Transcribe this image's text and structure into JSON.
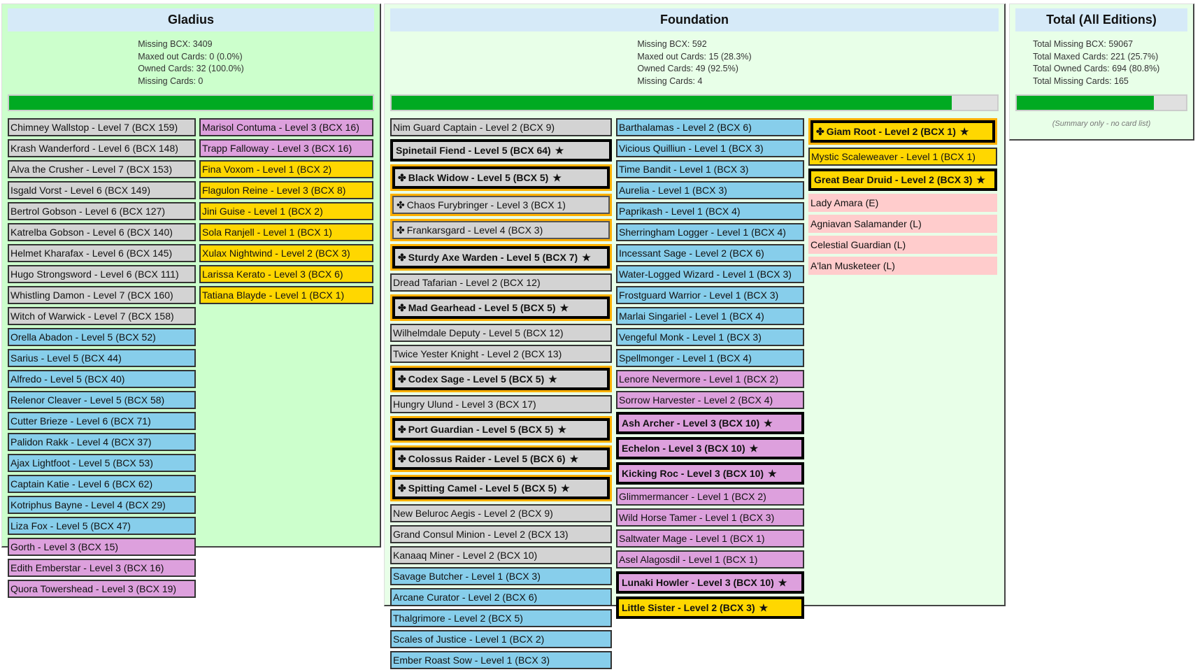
{
  "colors": {
    "gray": "#d3d3d3",
    "blue": "#87ceeb",
    "plum": "#dda0dd",
    "gold": "#ffd700",
    "missing": "#ffcccc",
    "progress": "#00aa22"
  },
  "icons": {
    "gold_foil": "gold-foil-icon",
    "maxed": "star-icon"
  },
  "gladius": {
    "title": "Gladius",
    "stats": [
      "Missing BCX: 3409",
      "Maxed out Cards: 0 (0.0%)",
      "Owned Cards: 32 (100.0%)",
      "Missing Cards: 0"
    ],
    "progress_percent": 100,
    "columns": [
      [
        {
          "t": "Chimney Wallstop - Level 7 (BCX 159)",
          "c": "gray"
        },
        {
          "t": "Krash Wanderford - Level 6 (BCX 148)",
          "c": "gray"
        },
        {
          "t": "Alva the Crusher - Level 7 (BCX 153)",
          "c": "gray"
        },
        {
          "t": "Isgald Vorst - Level 6 (BCX 149)",
          "c": "gray"
        },
        {
          "t": "Bertrol Gobson - Level 6 (BCX 127)",
          "c": "gray"
        },
        {
          "t": "Katrelba Gobson - Level 6 (BCX 140)",
          "c": "gray"
        },
        {
          "t": "Helmet Kharafax - Level 6 (BCX 145)",
          "c": "gray"
        },
        {
          "t": "Hugo Strongsword - Level 6 (BCX 111)",
          "c": "gray"
        },
        {
          "t": "Whistling Damon - Level 7 (BCX 160)",
          "c": "gray"
        },
        {
          "t": "Witch of Warwick - Level 7 (BCX 158)",
          "c": "gray"
        },
        {
          "t": "Orella Abadon - Level 5 (BCX 52)",
          "c": "blue"
        },
        {
          "t": "Sarius - Level 5 (BCX 44)",
          "c": "blue"
        },
        {
          "t": "Alfredo - Level 5 (BCX 40)",
          "c": "blue"
        },
        {
          "t": "Relenor Cleaver - Level 5 (BCX 58)",
          "c": "blue"
        },
        {
          "t": "Cutter Brieze - Level 6 (BCX 71)",
          "c": "blue"
        },
        {
          "t": "Palidon Rakk - Level 4 (BCX 37)",
          "c": "blue"
        },
        {
          "t": "Ajax Lightfoot - Level 5 (BCX 53)",
          "c": "blue"
        },
        {
          "t": "Captain Katie - Level 6 (BCX 62)",
          "c": "blue"
        },
        {
          "t": "Kotriphus Bayne - Level 4 (BCX 29)",
          "c": "blue"
        },
        {
          "t": "Liza Fox - Level 5 (BCX 47)",
          "c": "blue"
        },
        {
          "t": "Gorth - Level 3 (BCX 15)",
          "c": "plum"
        },
        {
          "t": "Edith Emberstar - Level 3 (BCX 16)",
          "c": "plum"
        },
        {
          "t": "Quora Towershead - Level 3 (BCX 19)",
          "c": "plum"
        }
      ],
      [
        {
          "t": "Marisol Contuma - Level 3 (BCX 16)",
          "c": "plum"
        },
        {
          "t": "Trapp Falloway - Level 3 (BCX 16)",
          "c": "plum"
        },
        {
          "t": "Fina Voxom - Level 1 (BCX 2)",
          "c": "gold"
        },
        {
          "t": "Flagulon Reine - Level 3 (BCX 8)",
          "c": "gold"
        },
        {
          "t": "Jini Guise - Level 1 (BCX 2)",
          "c": "gold"
        },
        {
          "t": "Sola Ranjell - Level 1 (BCX 1)",
          "c": "gold"
        },
        {
          "t": "Xulax Nightwind - Level 2 (BCX 3)",
          "c": "gold"
        },
        {
          "t": "Larissa Kerato - Level 3 (BCX 6)",
          "c": "gold"
        },
        {
          "t": "Tatiana Blayde - Level 1 (BCX 1)",
          "c": "gold"
        }
      ]
    ]
  },
  "foundation": {
    "title": "Foundation",
    "stats": [
      "Missing BCX: 592",
      "Maxed out Cards: 15 (28.3%)",
      "Owned Cards: 49 (92.5%)",
      "Missing Cards: 4"
    ],
    "progress_percent": 92.5,
    "columns": [
      [
        {
          "t": "Nim Guard Captain - Level 2 (BCX 9)",
          "c": "gray"
        },
        {
          "t": "Spinetail Fiend - Level 5 (BCX 64)",
          "c": "gray",
          "m": true
        },
        {
          "t": "Black Widow - Level 5 (BCX 5)",
          "c": "gray",
          "m": true,
          "g": true
        },
        {
          "t": "Chaos Furybringer - Level 3 (BCX 1)",
          "c": "gray",
          "g": true
        },
        {
          "t": "Frankarsgard - Level 4 (BCX 3)",
          "c": "gray",
          "g": true
        },
        {
          "t": "Sturdy Axe Warden - Level 5 (BCX 7)",
          "c": "gray",
          "m": true,
          "g": true
        },
        {
          "t": "Dread Tafarian - Level 2 (BCX 12)",
          "c": "gray"
        },
        {
          "t": "Mad Gearhead - Level 5 (BCX 5)",
          "c": "gray",
          "m": true,
          "g": true
        },
        {
          "t": "Wilhelmdale Deputy - Level 5 (BCX 12)",
          "c": "gray"
        },
        {
          "t": "Twice Yester Knight - Level 2 (BCX 13)",
          "c": "gray"
        },
        {
          "t": "Codex Sage - Level 5 (BCX 5)",
          "c": "gray",
          "m": true,
          "g": true
        },
        {
          "t": "Hungry Ulund - Level 3 (BCX 17)",
          "c": "gray"
        },
        {
          "t": "Port Guardian - Level 5 (BCX 5)",
          "c": "gray",
          "m": true,
          "g": true
        },
        {
          "t": "Colossus Raider - Level 5 (BCX 6)",
          "c": "gray",
          "m": true,
          "g": true
        },
        {
          "t": "Spitting Camel - Level 5 (BCX 5)",
          "c": "gray",
          "m": true,
          "g": true
        },
        {
          "t": "New Beluroc Aegis - Level 2 (BCX 9)",
          "c": "gray"
        },
        {
          "t": "Grand Consul Minion - Level 2 (BCX 13)",
          "c": "gray"
        },
        {
          "t": "Kanaaq Miner - Level 2 (BCX 10)",
          "c": "gray"
        },
        {
          "t": "Savage Butcher - Level 1 (BCX 3)",
          "c": "blue"
        },
        {
          "t": "Arcane Curator - Level 2 (BCX 6)",
          "c": "blue"
        },
        {
          "t": "Thalgrimore - Level 2 (BCX 5)",
          "c": "blue"
        },
        {
          "t": "Scales of Justice - Level 1 (BCX 2)",
          "c": "blue"
        },
        {
          "t": "Ember Roast Sow - Level 1 (BCX 3)",
          "c": "blue"
        }
      ],
      [
        {
          "t": "Barthalamas - Level 2 (BCX 6)",
          "c": "blue"
        },
        {
          "t": "Vicious Quilliun - Level 1 (BCX 3)",
          "c": "blue"
        },
        {
          "t": "Time Bandit - Level 1 (BCX 3)",
          "c": "blue"
        },
        {
          "t": "Aurelia - Level 1 (BCX 3)",
          "c": "blue"
        },
        {
          "t": "Paprikash - Level 1 (BCX 4)",
          "c": "blue"
        },
        {
          "t": "Sherringham Logger - Level 1 (BCX 4)",
          "c": "blue"
        },
        {
          "t": "Incessant Sage - Level 2 (BCX 6)",
          "c": "blue"
        },
        {
          "t": "Water-Logged Wizard - Level 1 (BCX 3)",
          "c": "blue"
        },
        {
          "t": "Frostguard Warrior - Level 1 (BCX 3)",
          "c": "blue"
        },
        {
          "t": "Marlai Singariel - Level 1 (BCX 4)",
          "c": "blue"
        },
        {
          "t": "Vengeful Monk - Level 1 (BCX 3)",
          "c": "blue"
        },
        {
          "t": "Spellmonger - Level 1 (BCX 4)",
          "c": "blue"
        },
        {
          "t": "Lenore Nevermore - Level 1 (BCX 2)",
          "c": "plum"
        },
        {
          "t": "Sorrow Harvester - Level 2 (BCX 4)",
          "c": "plum"
        },
        {
          "t": "Ash Archer - Level 3 (BCX 10)",
          "c": "plum",
          "m": true
        },
        {
          "t": "Echelon - Level 3 (BCX 10)",
          "c": "plum",
          "m": true
        },
        {
          "t": "Kicking Roc - Level 3 (BCX 10)",
          "c": "plum",
          "m": true
        },
        {
          "t": "Glimmermancer - Level 1 (BCX 2)",
          "c": "plum"
        },
        {
          "t": "Wild Horse Tamer - Level 1 (BCX 3)",
          "c": "plum"
        },
        {
          "t": "Saltwater Mage - Level 1 (BCX 1)",
          "c": "plum"
        },
        {
          "t": "Asel Alagosdil - Level 1 (BCX 1)",
          "c": "plum"
        },
        {
          "t": "Lunaki Howler - Level 3 (BCX 10)",
          "c": "plum",
          "m": true
        },
        {
          "t": "Little Sister - Level 2 (BCX 3)",
          "c": "gold",
          "m": true
        }
      ],
      [
        {
          "t": "Giam Root - Level 2 (BCX 1)",
          "c": "gold",
          "m": true,
          "g": true
        },
        {
          "t": "Mystic Scaleweaver - Level 1 (BCX 1)",
          "c": "gold"
        },
        {
          "t": "Great Bear Druid - Level 2 (BCX 3)",
          "c": "gold",
          "m": true
        },
        {
          "t": "Lady Amara (E)",
          "c": "missing"
        },
        {
          "t": "Agniavan Salamander (L)",
          "c": "missing"
        },
        {
          "t": "Celestial Guardian (L)",
          "c": "missing"
        },
        {
          "t": "A'lan Musketeer (L)",
          "c": "missing"
        }
      ]
    ]
  },
  "total": {
    "title": "Total (All Editions)",
    "stats": [
      "Total Missing BCX: 59067",
      "Total Maxed Cards: 221 (25.7%)",
      "Total Owned Cards: 694 (80.8%)",
      "Total Missing Cards: 165"
    ],
    "progress_percent": 80.8,
    "note": "(Summary only - no card list)"
  }
}
